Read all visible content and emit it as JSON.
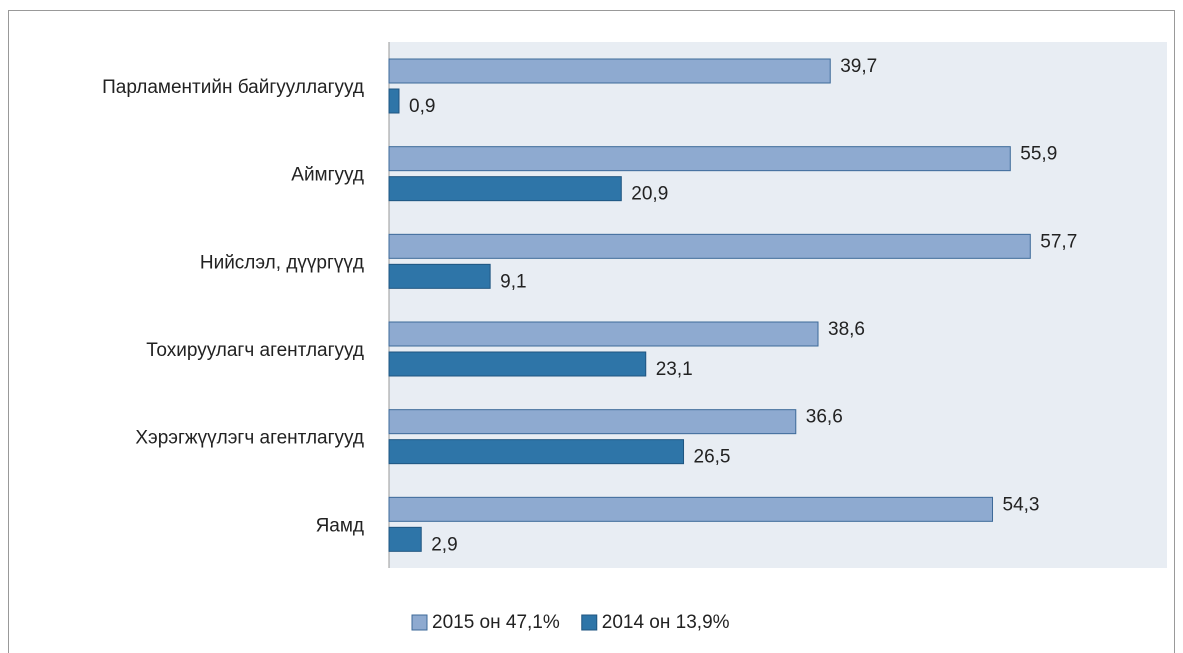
{
  "chart_data": {
    "type": "hbar",
    "categories": [
      "Парламентийн байгууллагууд",
      "Аймгууд",
      "Нийслэл, дүүргүүд",
      "Тохируулагч агентлагууд",
      "Хэрэгжүүлэгч агентлагууд",
      "Яамд"
    ],
    "series": [
      {
        "name": "2015 он 47,1%",
        "color": "#8eaad0",
        "values": [
          39.7,
          55.9,
          57.7,
          38.6,
          36.6,
          54.3
        ],
        "value_labels": [
          "39,7",
          "55,9",
          "57,7",
          "38,6",
          "36,6",
          "54,3"
        ]
      },
      {
        "name": "2014 он 13,9%",
        "color": "#2e75a8",
        "values": [
          0.9,
          20.9,
          9.1,
          23.1,
          26.5,
          2.9
        ],
        "value_labels": [
          "0,9",
          "20,9",
          "9,1",
          "23,1",
          "26,5",
          "2,9"
        ]
      }
    ],
    "xlim": [
      0,
      70
    ],
    "legend": "bottom"
  }
}
